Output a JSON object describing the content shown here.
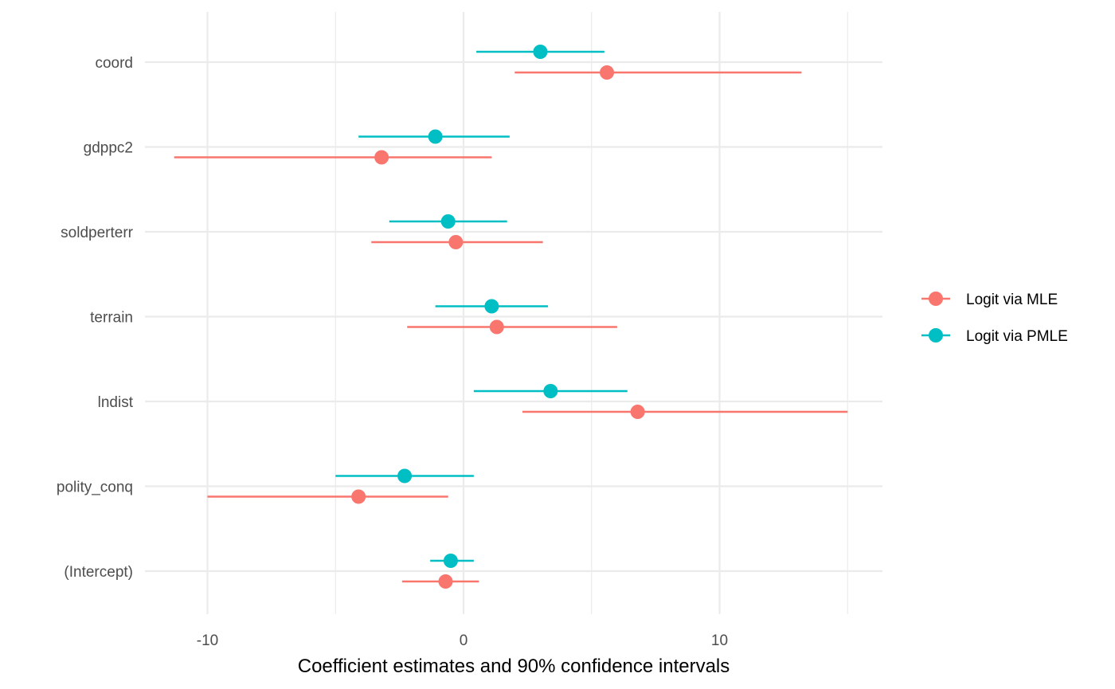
{
  "chart_data": {
    "type": "scatter",
    "subtype": "coefficient-plot-with-horizontal-error-bars",
    "xlabel": "Coefficient estimates and 90% confidence intervals",
    "ylabel": "",
    "xlim": [
      -12.5,
      16
    ],
    "x_ticks": [
      -10,
      0,
      10
    ],
    "x_tick_labels": [
      "-10",
      "0",
      "10"
    ],
    "grid": true,
    "legend_position": "right",
    "categories": [
      "coord",
      "gdppc2",
      "soldperterr",
      "terrain",
      "lndist",
      "polity_conq",
      "(Intercept)"
    ],
    "series": [
      {
        "name": "Logit via MLE",
        "color": "#F8766D",
        "estimates": [
          5.6,
          -3.2,
          -0.3,
          1.3,
          6.8,
          -4.1,
          -0.7
        ],
        "lower": [
          2.0,
          -11.3,
          -3.6,
          -2.2,
          2.3,
          -10.0,
          -2.4
        ],
        "upper": [
          13.2,
          1.1,
          3.1,
          6.0,
          15.0,
          -0.6,
          0.6
        ]
      },
      {
        "name": "Logit via PMLE",
        "color": "#00BFC4",
        "estimates": [
          3.0,
          -1.1,
          -0.6,
          1.1,
          3.4,
          -2.3,
          -0.5
        ],
        "lower": [
          0.5,
          -4.1,
          -2.9,
          -1.1,
          0.4,
          -5.0,
          -1.3
        ],
        "upper": [
          5.5,
          1.8,
          1.7,
          3.3,
          6.4,
          0.4,
          0.4
        ]
      }
    ]
  }
}
